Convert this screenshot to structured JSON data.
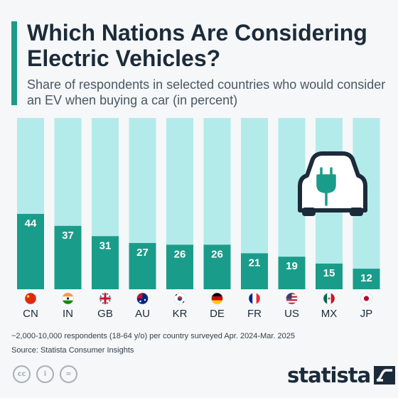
{
  "header": {
    "title": "Which Nations Are Considering Electric Vehicles?",
    "subtitle": "Share of respondents in selected countries who would consider an EV when buying a car (in percent)"
  },
  "chart_data": {
    "type": "bar",
    "categories": [
      "CN",
      "IN",
      "GB",
      "AU",
      "KR",
      "DE",
      "FR",
      "US",
      "MX",
      "JP"
    ],
    "flags": [
      "flag-cn-icon",
      "flag-in-icon",
      "flag-gb-icon",
      "flag-au-icon",
      "flag-kr-icon",
      "flag-de-icon",
      "flag-fr-icon",
      "flag-us-icon",
      "flag-mx-icon",
      "flag-jp-icon"
    ],
    "values": [
      44,
      37,
      31,
      27,
      26,
      26,
      21,
      19,
      15,
      12
    ],
    "ylim": [
      0,
      100
    ],
    "bar_color": "#1a9c8a",
    "background_bar_color": "#b3ebea",
    "value_label_color": "#ffffff",
    "grid": false,
    "illustration": "electric-car-plug-icon"
  },
  "footer": {
    "note": "~2,000-10,000 respondents (18-64 y/o) per country surveyed Apr. 2024-Mar. 2025",
    "source": "Source: Statista Consumer Insights",
    "license_icons": [
      "cc",
      "i",
      "="
    ],
    "brand": "statista"
  }
}
